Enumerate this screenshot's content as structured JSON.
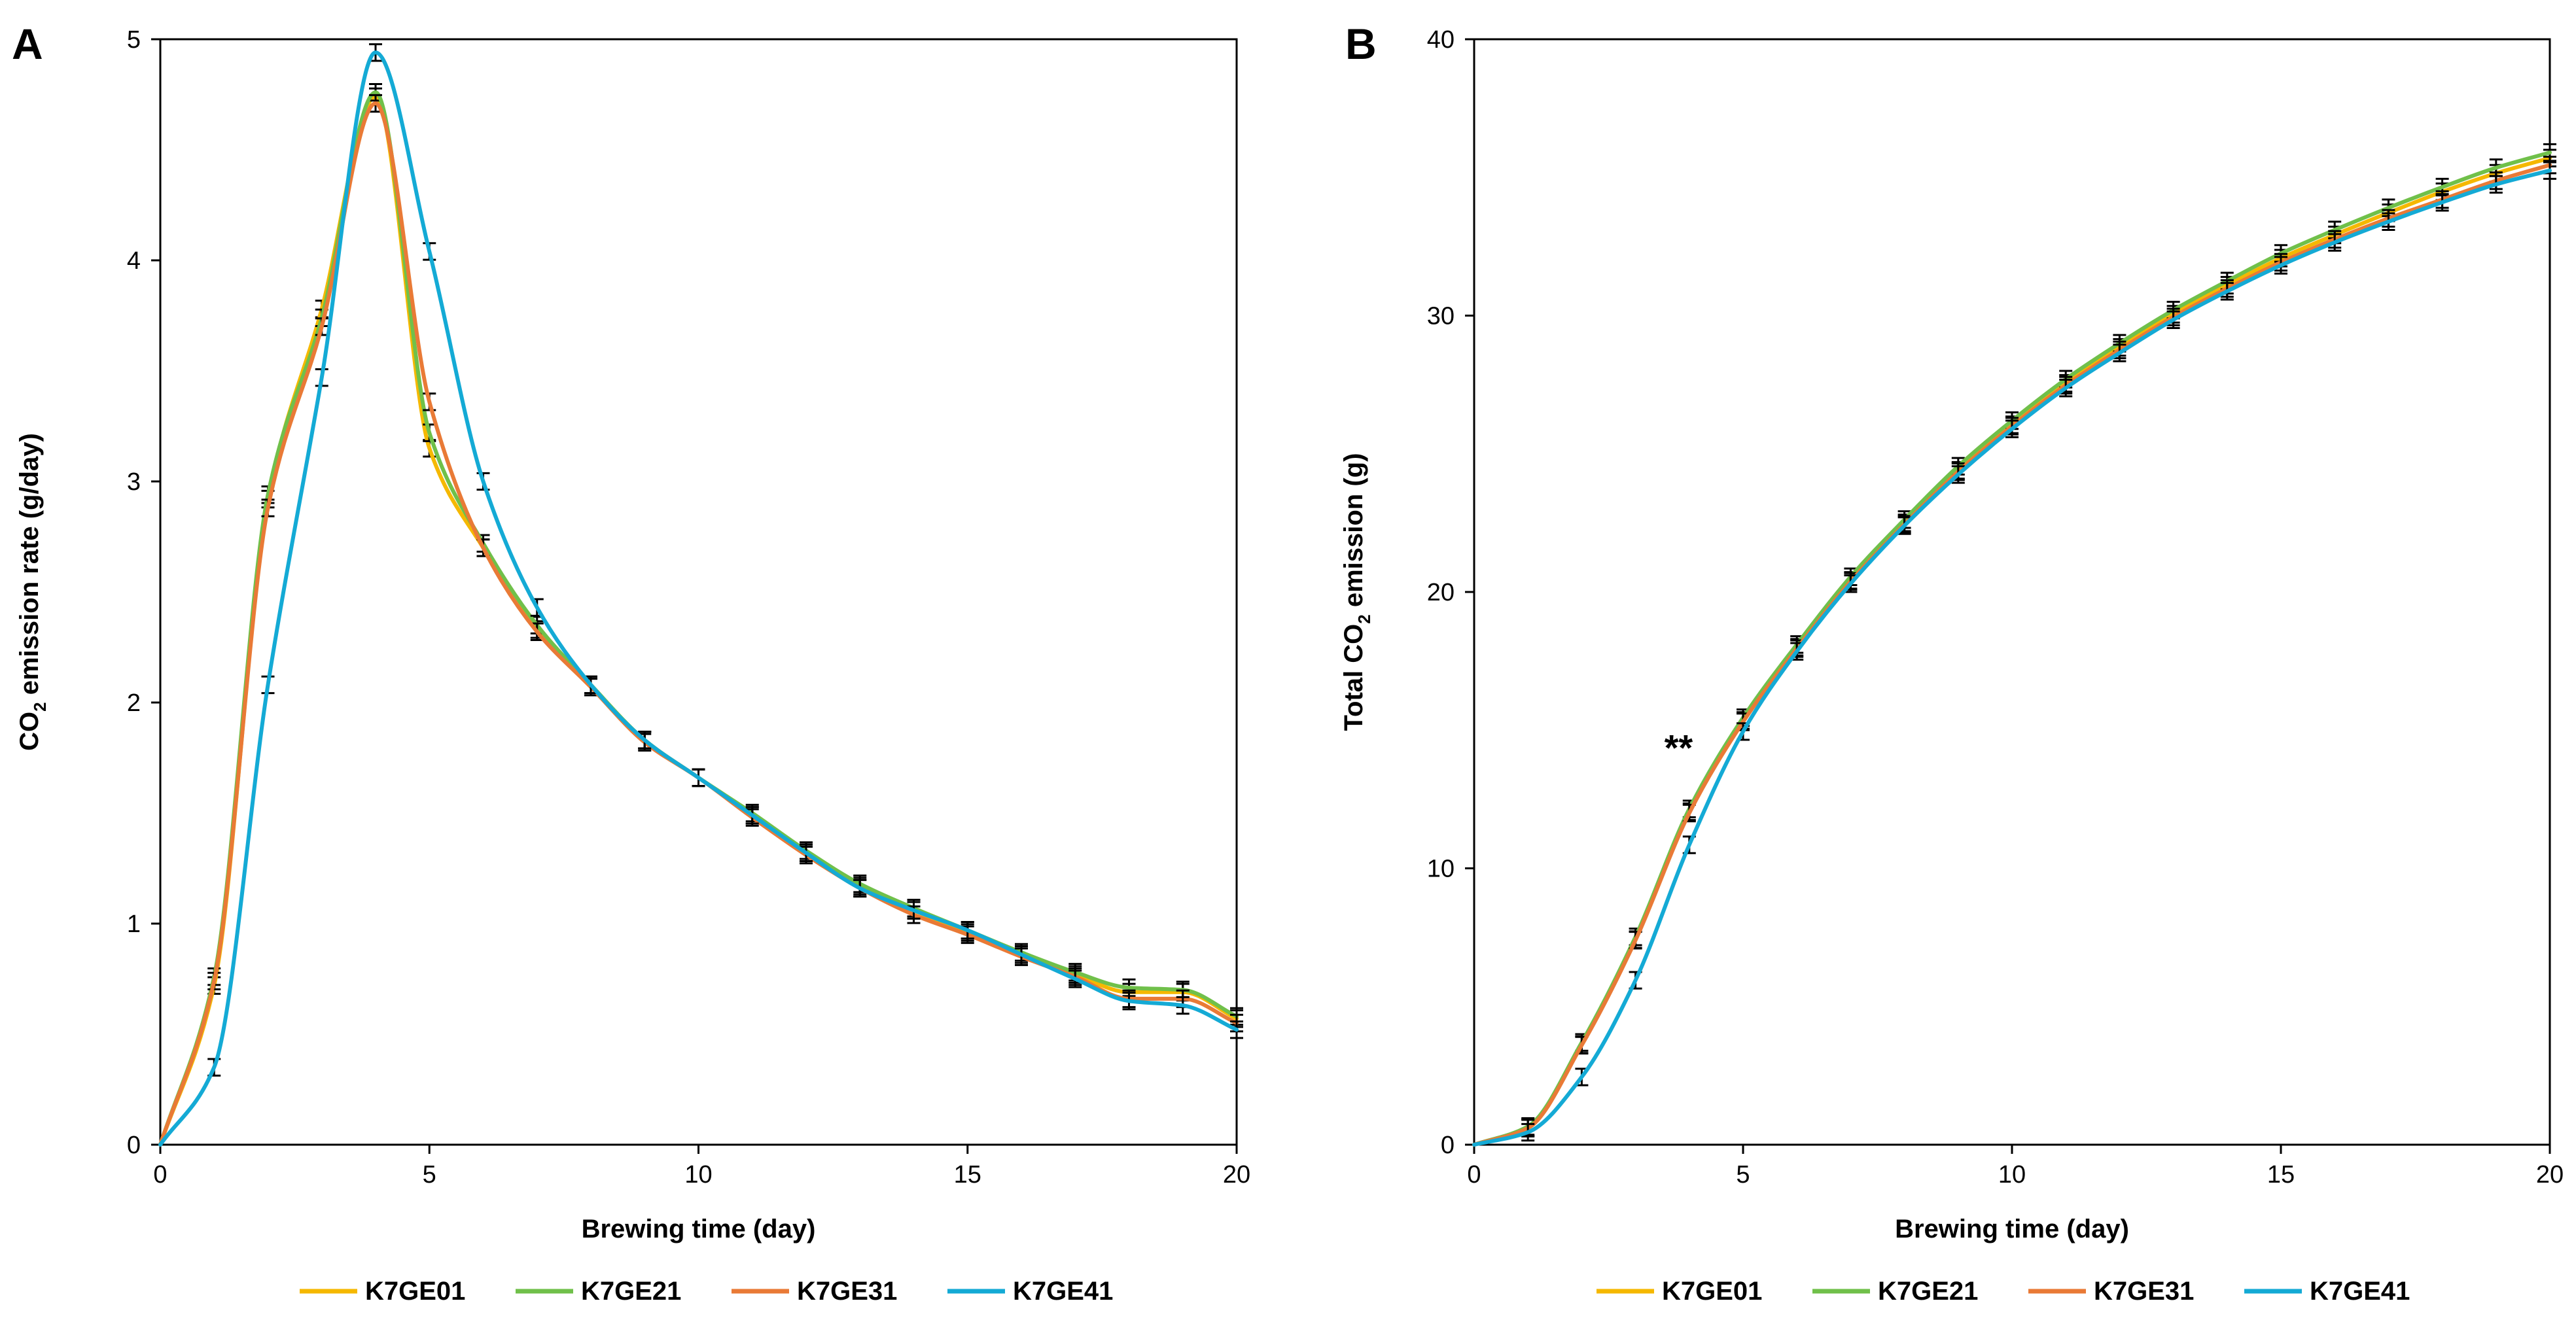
{
  "chart_data": [
    {
      "panel": "A",
      "type": "line",
      "xlabel": "Brewing time (day)",
      "ylabel": {
        "prefix": "CO",
        "subscript": "2",
        "suffix": " emission rate (g/day)"
      },
      "xlim": [
        0,
        20
      ],
      "ylim": [
        0,
        5
      ],
      "xticks": [
        "0",
        "5",
        "10",
        "15",
        "20"
      ],
      "yticks": [
        "0",
        "1",
        "2",
        "3",
        "4",
        "5"
      ],
      "x": [
        0,
        1,
        2,
        3,
        4,
        5,
        6,
        7,
        8,
        9,
        10,
        11,
        12,
        13,
        14,
        15,
        16,
        17,
        18,
        19,
        20
      ],
      "series": [
        {
          "name": "K7GE01",
          "color": "#F5B800",
          "values": [
            0,
            0.72,
            2.92,
            3.78,
            4.74,
            3.15,
            2.7,
            2.33,
            2.07,
            1.83,
            1.66,
            1.49,
            1.32,
            1.17,
            1.06,
            0.96,
            0.86,
            0.77,
            0.69,
            0.69,
            0.57
          ]
        },
        {
          "name": "K7GE21",
          "color": "#70C04A",
          "values": [
            0,
            0.76,
            2.94,
            3.74,
            4.76,
            3.22,
            2.72,
            2.35,
            2.08,
            1.83,
            1.66,
            1.5,
            1.33,
            1.18,
            1.07,
            0.97,
            0.87,
            0.78,
            0.71,
            0.7,
            0.58
          ]
        },
        {
          "name": "K7GE31",
          "color": "#E97A36",
          "values": [
            0,
            0.74,
            2.88,
            3.7,
            4.71,
            3.36,
            2.7,
            2.32,
            2.07,
            1.82,
            1.66,
            1.48,
            1.31,
            1.16,
            1.04,
            0.95,
            0.85,
            0.76,
            0.66,
            0.66,
            0.55
          ]
        },
        {
          "name": "K7GE41",
          "color": "#14AAD5",
          "values": [
            0,
            0.35,
            2.08,
            3.47,
            4.94,
            4.04,
            3.0,
            2.43,
            2.08,
            1.83,
            1.66,
            1.49,
            1.32,
            1.16,
            1.06,
            0.97,
            0.86,
            0.75,
            0.65,
            0.63,
            0.52
          ]
        }
      ]
    },
    {
      "panel": "B",
      "type": "line",
      "xlabel": "Brewing time (day)",
      "ylabel": {
        "prefix": "Total CO",
        "subscript": "2",
        "suffix": " emission (g)"
      },
      "xlim": [
        0,
        20
      ],
      "ylim": [
        0,
        40
      ],
      "xticks": [
        "0",
        "5",
        "10",
        "15",
        "20"
      ],
      "yticks": [
        "0",
        "10",
        "20",
        "30",
        "40"
      ],
      "annotation": {
        "text": "**",
        "x": 3.8,
        "y": 13.9
      },
      "x": [
        0,
        1,
        2,
        3,
        4,
        5,
        6,
        7,
        8,
        9,
        10,
        11,
        12,
        13,
        14,
        15,
        16,
        17,
        18,
        19,
        20
      ],
      "series": [
        {
          "name": "K7GE01",
          "color": "#F5B800",
          "values": [
            0,
            0.62,
            3.62,
            7.42,
            12.05,
            15.35,
            18.0,
            20.42,
            22.5,
            24.4,
            26.05,
            27.55,
            28.85,
            30.05,
            31.1,
            32.08,
            32.92,
            33.72,
            34.48,
            35.15,
            35.7
          ]
        },
        {
          "name": "K7GE21",
          "color": "#70C04A",
          "values": [
            0,
            0.66,
            3.7,
            7.52,
            12.15,
            15.45,
            18.1,
            20.55,
            22.62,
            24.55,
            26.2,
            27.7,
            29.0,
            30.2,
            31.25,
            32.25,
            33.1,
            33.9,
            34.65,
            35.35,
            35.9
          ]
        },
        {
          "name": "K7GE31",
          "color": "#E97A36",
          "values": [
            0,
            0.6,
            3.6,
            7.4,
            12.0,
            15.3,
            17.95,
            20.38,
            22.45,
            24.35,
            26.0,
            27.48,
            28.76,
            29.95,
            30.98,
            31.93,
            32.76,
            33.52,
            34.2,
            34.88,
            35.45
          ]
        },
        {
          "name": "K7GE41",
          "color": "#14AAD5",
          "values": [
            0,
            0.45,
            2.45,
            5.95,
            10.85,
            14.95,
            17.85,
            20.3,
            22.4,
            24.25,
            25.9,
            27.38,
            28.65,
            29.85,
            30.88,
            31.82,
            32.65,
            33.4,
            34.1,
            34.75,
            35.25
          ]
        }
      ]
    }
  ]
}
